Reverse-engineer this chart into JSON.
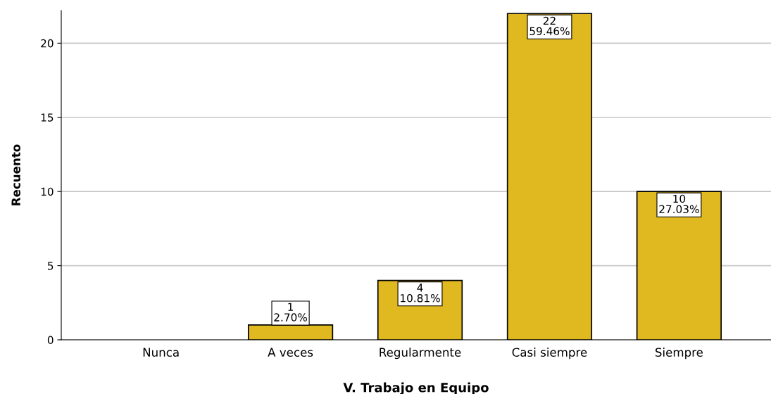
{
  "chart_data": {
    "type": "bar",
    "xlabel": "V. Trabajo en Equipo",
    "ylabel": "Recuento",
    "categories": [
      "Nunca",
      "A veces",
      "Regularmente",
      "Casi siempre",
      "Siempre"
    ],
    "values": [
      0,
      1,
      4,
      22,
      10
    ],
    "color": "#e0b81f",
    "value_labels": [
      null,
      "1\n2.70%",
      "4\n10.81%",
      "22\n59.46%",
      "10\n27.03%"
    ],
    "ylim": [
      0,
      22.2
    ],
    "yticks": [
      0,
      5,
      10,
      15,
      20
    ],
    "grid": "y"
  }
}
